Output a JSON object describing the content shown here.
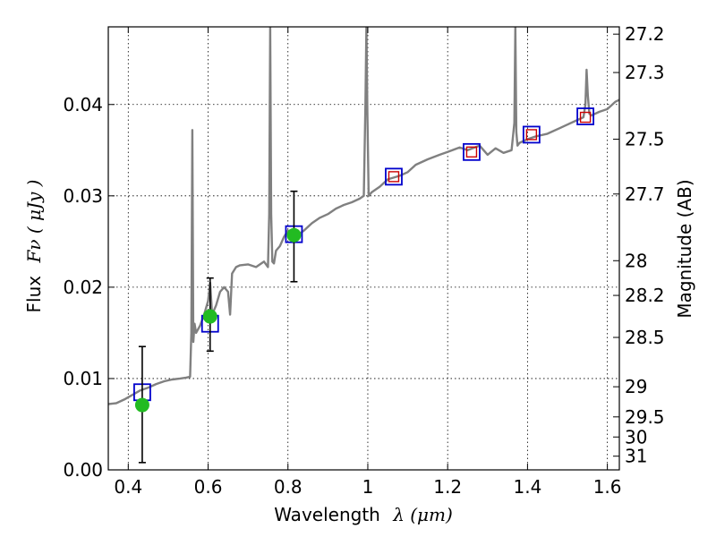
{
  "chart_data": {
    "type": "line",
    "title": "",
    "xlabel": "Wavelength",
    "xlabel_math": "λ (μm)",
    "ylabel": "Flux",
    "ylabel_math": "Fν ( μJy )",
    "y2label": "Magnitude (AB)",
    "xlim": [
      0.35,
      1.63
    ],
    "ylim": [
      0.0,
      0.0485
    ],
    "grid": true,
    "x_ticks": [
      0.4,
      0.6,
      0.8,
      1.0,
      1.2,
      1.4,
      1.6
    ],
    "x_tick_labels": [
      "0.4",
      "0.6",
      "0.8",
      "1",
      "1.2",
      "1.4",
      "1.6"
    ],
    "y_ticks": [
      0.0,
      0.01,
      0.02,
      0.03,
      0.04
    ],
    "y_tick_labels": [
      "0.00",
      "0.01",
      "0.02",
      "0.03",
      "0.04"
    ],
    "mag_ticks": [
      {
        "label": "27.2",
        "flux": 0.0477
      },
      {
        "label": "27.3",
        "flux": 0.0435
      },
      {
        "label": "27.5",
        "flux": 0.0362
      },
      {
        "label": "27.7",
        "flux": 0.0302
      },
      {
        "label": "28",
        "flux": 0.0229
      },
      {
        "label": "28.2",
        "flux": 0.0191
      },
      {
        "label": "28.5",
        "flux": 0.0145
      },
      {
        "label": "29",
        "flux": 0.0091
      },
      {
        "label": "29.5",
        "flux": 0.0058
      },
      {
        "label": "30",
        "flux": 0.0036
      },
      {
        "label": "31",
        "flux": 0.0015
      }
    ],
    "series": [
      {
        "name": "model_spectrum",
        "color": "#808080",
        "x": [
          0.35,
          0.37,
          0.39,
          0.41,
          0.43,
          0.45,
          0.47,
          0.49,
          0.51,
          0.53,
          0.545,
          0.555,
          0.558,
          0.5605,
          0.563,
          0.566,
          0.57,
          0.58,
          0.59,
          0.6,
          0.605,
          0.61,
          0.62,
          0.63,
          0.64,
          0.65,
          0.655,
          0.66,
          0.67,
          0.68,
          0.7,
          0.72,
          0.74,
          0.75,
          0.753,
          0.7555,
          0.758,
          0.761,
          0.765,
          0.77,
          0.78,
          0.79,
          0.8,
          0.82,
          0.84,
          0.86,
          0.88,
          0.9,
          0.92,
          0.94,
          0.96,
          0.98,
          0.99,
          0.994,
          0.9965,
          0.999,
          1.002,
          1.01,
          1.03,
          1.05,
          1.08,
          1.1,
          1.12,
          1.15,
          1.18,
          1.2,
          1.23,
          1.25,
          1.28,
          1.3,
          1.32,
          1.34,
          1.36,
          1.367,
          1.3695,
          1.372,
          1.375,
          1.38,
          1.4,
          1.42,
          1.45,
          1.48,
          1.5,
          1.52,
          1.54,
          1.545,
          1.548,
          1.551,
          1.555,
          1.56,
          1.58,
          1.6,
          1.62,
          1.63
        ],
        "y": [
          0.0072,
          0.0073,
          0.0077,
          0.0082,
          0.0087,
          0.009,
          0.0094,
          0.0097,
          0.0099,
          0.01,
          0.0101,
          0.0102,
          0.015,
          0.0372,
          0.014,
          0.016,
          0.015,
          0.0158,
          0.017,
          0.0185,
          0.0205,
          0.017,
          0.018,
          0.0195,
          0.02,
          0.0195,
          0.017,
          0.0215,
          0.0222,
          0.0224,
          0.0225,
          0.0222,
          0.0228,
          0.0222,
          0.028,
          0.0485,
          0.028,
          0.0228,
          0.0226,
          0.024,
          0.0245,
          0.0255,
          0.0262,
          0.0256,
          0.0262,
          0.027,
          0.0276,
          0.028,
          0.0286,
          0.029,
          0.0293,
          0.0297,
          0.03,
          0.04,
          0.0485,
          0.039,
          0.03,
          0.0304,
          0.031,
          0.0318,
          0.0322,
          0.0326,
          0.0334,
          0.034,
          0.0345,
          0.0348,
          0.0353,
          0.035,
          0.0355,
          0.0345,
          0.0352,
          0.0347,
          0.035,
          0.038,
          0.0485,
          0.037,
          0.0355,
          0.0358,
          0.0362,
          0.0365,
          0.0368,
          0.0374,
          0.0378,
          0.0382,
          0.0386,
          0.04,
          0.0438,
          0.041,
          0.039,
          0.0388,
          0.0392,
          0.0395,
          0.0403,
          0.0405
        ]
      },
      {
        "name": "model_photometry",
        "marker": "square",
        "color": "#0000cc",
        "x": [
          0.435,
          0.605,
          0.815,
          1.065,
          1.26,
          1.41,
          1.545
        ],
        "y": [
          0.0085,
          0.016,
          0.0258,
          0.0321,
          0.0348,
          0.0367,
          0.0387
        ]
      },
      {
        "name": "observed_upper",
        "marker": "square",
        "color": "#cc0000",
        "x": [
          1.065,
          1.26,
          1.41,
          1.545
        ],
        "y": [
          0.0321,
          0.0348,
          0.0367,
          0.0386
        ]
      },
      {
        "name": "observed_detections",
        "marker": "circle",
        "color": "#22bb22",
        "x": [
          0.435,
          0.605,
          0.815
        ],
        "y": [
          0.0071,
          0.0168,
          0.0257
        ],
        "yerr_low": [
          0.0008,
          0.013,
          0.0206
        ],
        "yerr_high": [
          0.0135,
          0.021,
          0.0305
        ]
      }
    ]
  }
}
